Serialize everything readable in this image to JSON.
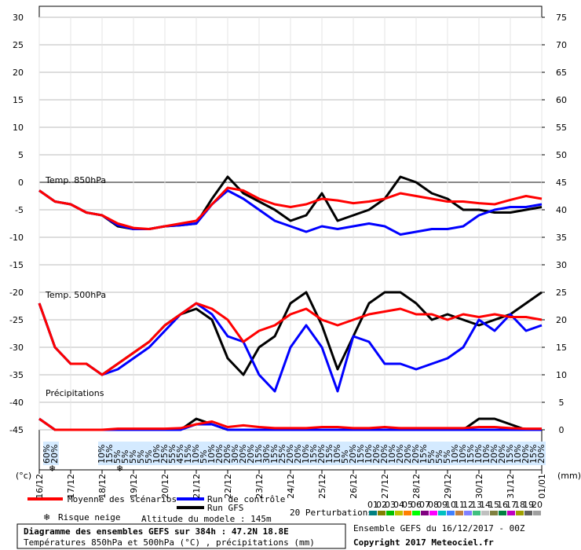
{
  "chart_data": {
    "type": "line",
    "x": [
      0,
      12,
      24,
      36,
      48,
      60,
      72,
      84,
      96,
      108,
      120,
      132,
      144,
      156,
      168,
      180,
      192,
      204,
      216,
      228,
      240,
      252,
      264,
      276,
      288,
      300,
      312,
      324,
      336,
      348,
      360,
      372,
      384
    ],
    "xlim": [
      0,
      384
    ],
    "xticks": [
      {
        "value": 0,
        "label": "16/12"
      },
      {
        "value": 24,
        "label": "17/12"
      },
      {
        "value": 48,
        "label": "18/12"
      },
      {
        "value": 72,
        "label": "19/12"
      },
      {
        "value": 96,
        "label": "20/12"
      },
      {
        "value": 120,
        "label": "21/12"
      },
      {
        "value": 144,
        "label": "22/12"
      },
      {
        "value": 168,
        "label": "23/12"
      },
      {
        "value": 192,
        "label": "24/12"
      },
      {
        "value": 216,
        "label": "25/12"
      },
      {
        "value": 240,
        "label": "26/12"
      },
      {
        "value": 264,
        "label": "27/12"
      },
      {
        "value": 288,
        "label": "28/12"
      },
      {
        "value": 312,
        "label": "29/12"
      },
      {
        "value": 336,
        "label": "30/12"
      },
      {
        "value": 360,
        "label": "31/12"
      },
      {
        "value": 384,
        "label": "01/01"
      }
    ],
    "ylim": [
      -45,
      30
    ],
    "yticks": [
      -45,
      -40,
      -35,
      -30,
      -25,
      -20,
      -15,
      -10,
      -5,
      0,
      5,
      10,
      15,
      20,
      25,
      30
    ],
    "y2lim": [
      0,
      75
    ],
    "y2ticks": [
      0,
      5,
      10,
      15,
      20,
      25,
      30,
      35,
      40,
      45,
      50,
      55,
      60,
      65,
      70,
      75
    ],
    "y_unit": "(°c)",
    "y2_unit": "(mm)",
    "grid": true,
    "panels": [
      "Temp. 850hPa",
      "Temp. 500hPa",
      "Précipitations"
    ],
    "series": [
      {
        "name": "Moyenne des scénarios",
        "color": "#ff0000",
        "t850": [
          -1.5,
          -3.5,
          -4,
          -5.5,
          -6,
          -7.5,
          -8.3,
          -8.5,
          -8,
          -7.5,
          -7,
          -4,
          -1,
          -1.5,
          -3,
          -4,
          -4.5,
          -4,
          -3,
          -3.3,
          -3.8,
          -3.5,
          -3,
          -2,
          -2.5,
          -3,
          -3.5,
          -3.5,
          -3.8,
          -4,
          -3.2,
          -2.5,
          -3
        ],
        "t500": [
          -22,
          -30,
          -33,
          -33,
          -35,
          -33,
          -31,
          -29,
          -26,
          -24,
          -22,
          -23,
          -25,
          -29,
          -27,
          -26,
          -24,
          -23,
          -25,
          -26,
          -25,
          -24,
          -23.5,
          -23,
          -24,
          -24,
          -25,
          -24,
          -24.5,
          -24,
          -24.5,
          -24.5,
          -25
        ],
        "precip": [
          2,
          0,
          0,
          0,
          0,
          0.2,
          0.2,
          0.2,
          0.2,
          0.3,
          1,
          1.5,
          0.5,
          0.8,
          0.5,
          0.3,
          0.3,
          0.3,
          0.5,
          0.5,
          0.3,
          0.3,
          0.5,
          0.3,
          0.3,
          0.3,
          0.3,
          0.3,
          0.5,
          0.5,
          0.3,
          0.2,
          0.2
        ]
      },
      {
        "name": "Run de contrôle",
        "color": "#0000ff",
        "t850": [
          -1.5,
          -3.5,
          -4,
          -5.5,
          -6,
          -7.8,
          -8.5,
          -8.5,
          -8,
          -7.8,
          -7.5,
          -4,
          -1.5,
          -3,
          -5,
          -7,
          -8,
          -9,
          -8,
          -8.5,
          -8,
          -7.5,
          -8,
          -9.5,
          -9,
          -8.5,
          -8.5,
          -8,
          -6,
          -5,
          -4.5,
          -4.5,
          -4
        ],
        "t500": [
          -22,
          -30,
          -33,
          -33,
          -35,
          -34,
          -32,
          -30,
          -27,
          -24,
          -22,
          -24,
          -28,
          -29,
          -35,
          -38,
          -30,
          -26,
          -30,
          -38,
          -28,
          -29,
          -33,
          -33,
          -34,
          -33,
          -32,
          -30,
          -25,
          -27,
          -24,
          -27,
          -26
        ],
        "precip": [
          2,
          0,
          0,
          0,
          0,
          0,
          0,
          0,
          0,
          0,
          1,
          1,
          0,
          0,
          0,
          0,
          0,
          0,
          0,
          0,
          0,
          0,
          0,
          0,
          0,
          0,
          0,
          0,
          0,
          0,
          0,
          0,
          0
        ]
      },
      {
        "name": "Run GFS",
        "color": "#000000",
        "t850": [
          -1.5,
          -3.5,
          -4,
          -5.5,
          -6,
          -8,
          -8.5,
          -8.5,
          -8,
          -7.8,
          -7.5,
          -3,
          1,
          -2,
          -3.5,
          -5,
          -7,
          -6,
          -2,
          -7,
          -6,
          -5,
          -3,
          1,
          0,
          -2,
          -3,
          -5,
          -5,
          -5.5,
          -5.5,
          -5,
          -4.5
        ],
        "t500": [
          -22,
          -30,
          -33,
          -33,
          -35,
          -33,
          -31,
          -29,
          -26,
          -24,
          -23,
          -25,
          -32,
          -35,
          -30,
          -28,
          -22,
          -20,
          -26,
          -34,
          -28,
          -22,
          -20,
          -20,
          -22,
          -25,
          -24,
          -25,
          -26,
          -25,
          -24,
          -22,
          -20
        ],
        "precip": [
          2,
          0,
          0,
          0,
          0,
          0,
          0,
          0,
          0,
          0,
          2,
          1,
          0,
          0,
          0,
          0,
          0,
          0,
          0,
          0,
          0,
          0,
          0,
          0,
          0,
          0,
          0,
          0,
          2,
          2,
          1,
          0,
          0
        ]
      }
    ],
    "snow_risk": {
      "hours": [
        6,
        12,
        48,
        54,
        60,
        66,
        72,
        78,
        84,
        90,
        96,
        102,
        108,
        114,
        120,
        126,
        132,
        138,
        144,
        150,
        156,
        162,
        168,
        174,
        180,
        186,
        192,
        198,
        204,
        210,
        216,
        222,
        228,
        234,
        240,
        246,
        252,
        258,
        264,
        270,
        276,
        282,
        288,
        294,
        300,
        306,
        312,
        318,
        324,
        330,
        336,
        342,
        348,
        354,
        360,
        366,
        372,
        378,
        384
      ],
      "values": [
        60,
        20,
        10,
        15,
        5,
        5,
        5,
        5,
        5,
        10,
        25,
        55,
        45,
        15,
        10,
        5,
        10,
        20,
        20,
        30,
        20,
        20,
        15,
        30,
        15,
        25,
        20,
        20,
        10,
        15,
        20,
        15,
        10,
        5,
        20,
        15,
        10,
        20,
        20,
        10,
        20,
        20,
        20,
        15,
        5,
        5,
        5,
        10,
        10,
        15,
        10,
        10,
        20,
        20,
        15,
        10,
        20,
        15,
        20
      ],
      "value_labels": [
        "60%",
        "20%",
        "10%",
        "15%",
        "5%",
        "5%",
        "5%",
        "5%",
        "5%",
        "10%",
        "25%",
        "55%",
        "45%",
        "15%",
        "10%",
        "5%",
        "10%",
        "20%",
        "20%",
        "30%",
        "20%",
        "20%",
        "15%",
        "30%",
        "15%",
        "25%",
        "20%",
        "20%",
        "10%",
        "15%",
        "20%",
        "15%",
        "10%",
        "5%",
        "20%",
        "15%",
        "10%",
        "20%",
        "20%",
        "10%",
        "20%",
        "20%",
        "20%",
        "15%",
        "5%",
        "5%",
        "5%",
        "10%",
        "10%",
        "15%",
        "10%",
        "10%",
        "20%",
        "20%",
        "15%",
        "10%",
        "20%",
        "15%",
        "20%"
      ]
    },
    "snow_legend": "Risque neige",
    "altitude": "Altitude du modele : 145m",
    "perturbations_label": "20 Perturbations",
    "perturbations": [
      {
        "label": "01",
        "color": "#008080"
      },
      {
        "label": "02",
        "color": "#808000"
      },
      {
        "label": "03",
        "color": "#00c000"
      },
      {
        "label": "04",
        "color": "#c0c000"
      },
      {
        "label": "05",
        "color": "#ff8000"
      },
      {
        "label": "06",
        "color": "#00ff00"
      },
      {
        "label": "07",
        "color": "#800080"
      },
      {
        "label": "08",
        "color": "#ff00ff"
      },
      {
        "label": "09",
        "color": "#00c0c0"
      },
      {
        "label": "10",
        "color": "#4080ff"
      },
      {
        "label": "11",
        "color": "#c08040"
      },
      {
        "label": "12",
        "color": "#8080ff"
      },
      {
        "label": "13",
        "color": "#40c080"
      },
      {
        "label": "14",
        "color": "#c0c0c0"
      },
      {
        "label": "15",
        "color": "#808040"
      },
      {
        "label": "16",
        "color": "#008040"
      },
      {
        "label": "17",
        "color": "#c000c0"
      },
      {
        "label": "18",
        "color": "#a0a000"
      },
      {
        "label": "19",
        "color": "#606060"
      },
      {
        "label": "20",
        "color": "#a0a0a0"
      }
    ],
    "title": "Diagramme des ensembles GEFS sur 384h : 47.2N 18.8E",
    "subtitle": "Températures 850hPa et 500hPa (°C) , précipitations (mm)",
    "run_info": "Ensemble GEFS du 16/12/2017 - 00Z",
    "copyright": "Copyright 2017 Meteociel.fr"
  }
}
